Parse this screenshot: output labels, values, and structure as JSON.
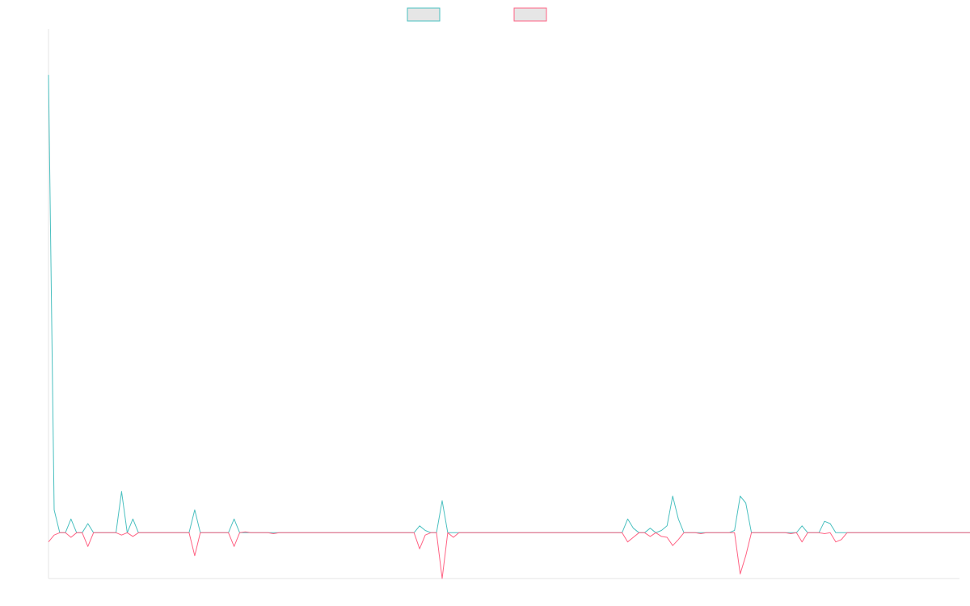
{
  "chart_data": {
    "type": "line",
    "title": "",
    "xlabel": "",
    "ylabel": "",
    "grid": false,
    "legend_position": "top-center",
    "ylim": [
      -10,
      110
    ],
    "xlim": [
      0,
      162
    ],
    "series": [
      {
        "color": "#4BC0C0",
        "legend_fill": "#E6E6E6",
        "values": [
          100,
          5,
          0,
          0,
          3,
          0,
          0,
          2,
          0,
          0,
          0,
          0,
          0,
          9,
          0,
          3,
          0,
          0,
          0,
          0,
          0,
          0,
          0,
          0,
          0,
          0,
          5,
          0,
          0,
          0,
          0,
          0,
          0,
          3,
          0,
          0,
          0,
          0,
          0,
          0,
          0,
          0,
          0,
          0,
          0,
          0,
          0,
          0,
          0,
          0,
          0,
          0,
          0,
          0,
          0,
          0,
          0,
          0,
          0,
          0,
          0,
          0,
          0,
          0,
          0,
          0,
          1.5,
          0.5,
          0,
          0,
          7,
          0,
          0,
          0,
          0,
          0,
          0,
          0,
          0,
          0,
          0,
          0,
          0,
          0,
          0,
          0,
          0,
          0,
          0,
          0,
          0,
          0,
          0,
          0,
          0,
          0,
          0,
          0,
          0,
          0,
          0,
          0,
          0,
          3,
          1,
          0,
          0,
          1,
          0,
          0.5,
          1.5,
          8,
          3,
          0,
          0,
          0,
          0,
          0,
          0,
          0,
          0,
          0,
          0.5,
          8,
          6.5,
          0,
          0,
          0,
          0,
          0,
          0,
          0,
          0,
          0,
          1.5,
          0,
          0,
          0,
          2.5,
          2,
          0,
          0,
          0,
          0,
          0,
          0,
          0,
          0,
          0,
          0,
          0,
          0,
          0,
          0,
          0,
          0,
          0,
          0,
          0,
          0,
          0,
          0,
          0,
          0,
          0,
          0
        ]
      },
      {
        "color": "#FF6384",
        "legend_fill": "#E6E6E6",
        "values": [
          -2,
          -0.5,
          0,
          0,
          -1,
          0,
          0,
          -3,
          0,
          0,
          0,
          0,
          0,
          -0.5,
          0,
          -0.8,
          0,
          0,
          0,
          0,
          0,
          0,
          0,
          0,
          0,
          0,
          -5,
          0,
          0,
          0,
          0,
          0,
          0,
          -3,
          0,
          0.2,
          0,
          0,
          0,
          0,
          -0.2,
          0,
          0,
          0,
          0,
          0,
          0,
          0,
          0,
          0,
          0,
          0,
          0,
          0,
          0,
          0,
          0,
          0,
          0,
          0,
          0,
          0,
          0,
          0,
          0,
          0,
          -3.5,
          -0.5,
          0,
          0,
          -10,
          0,
          -1,
          0,
          0,
          0,
          0,
          0,
          0,
          0,
          0,
          0,
          0,
          0,
          0,
          0,
          0,
          0,
          0,
          0,
          0,
          0,
          0,
          0,
          0,
          0,
          0,
          0,
          0,
          0,
          0,
          0,
          0,
          -2,
          -1,
          0,
          0,
          -0.8,
          0,
          -0.8,
          -1,
          -2.8,
          -1.5,
          0,
          0,
          0,
          -0.2,
          0,
          0,
          0,
          0,
          0,
          0,
          -9,
          -5,
          0,
          0,
          0,
          0,
          0,
          0,
          0,
          -0.2,
          0,
          -2,
          0,
          0,
          0,
          -0.2,
          0,
          -2,
          -1.5,
          0,
          0,
          0,
          0,
          0,
          0,
          0,
          0,
          0,
          0,
          0,
          0,
          0,
          0,
          0,
          0,
          0,
          0,
          0,
          0,
          0,
          0,
          0,
          0
        ]
      }
    ]
  }
}
